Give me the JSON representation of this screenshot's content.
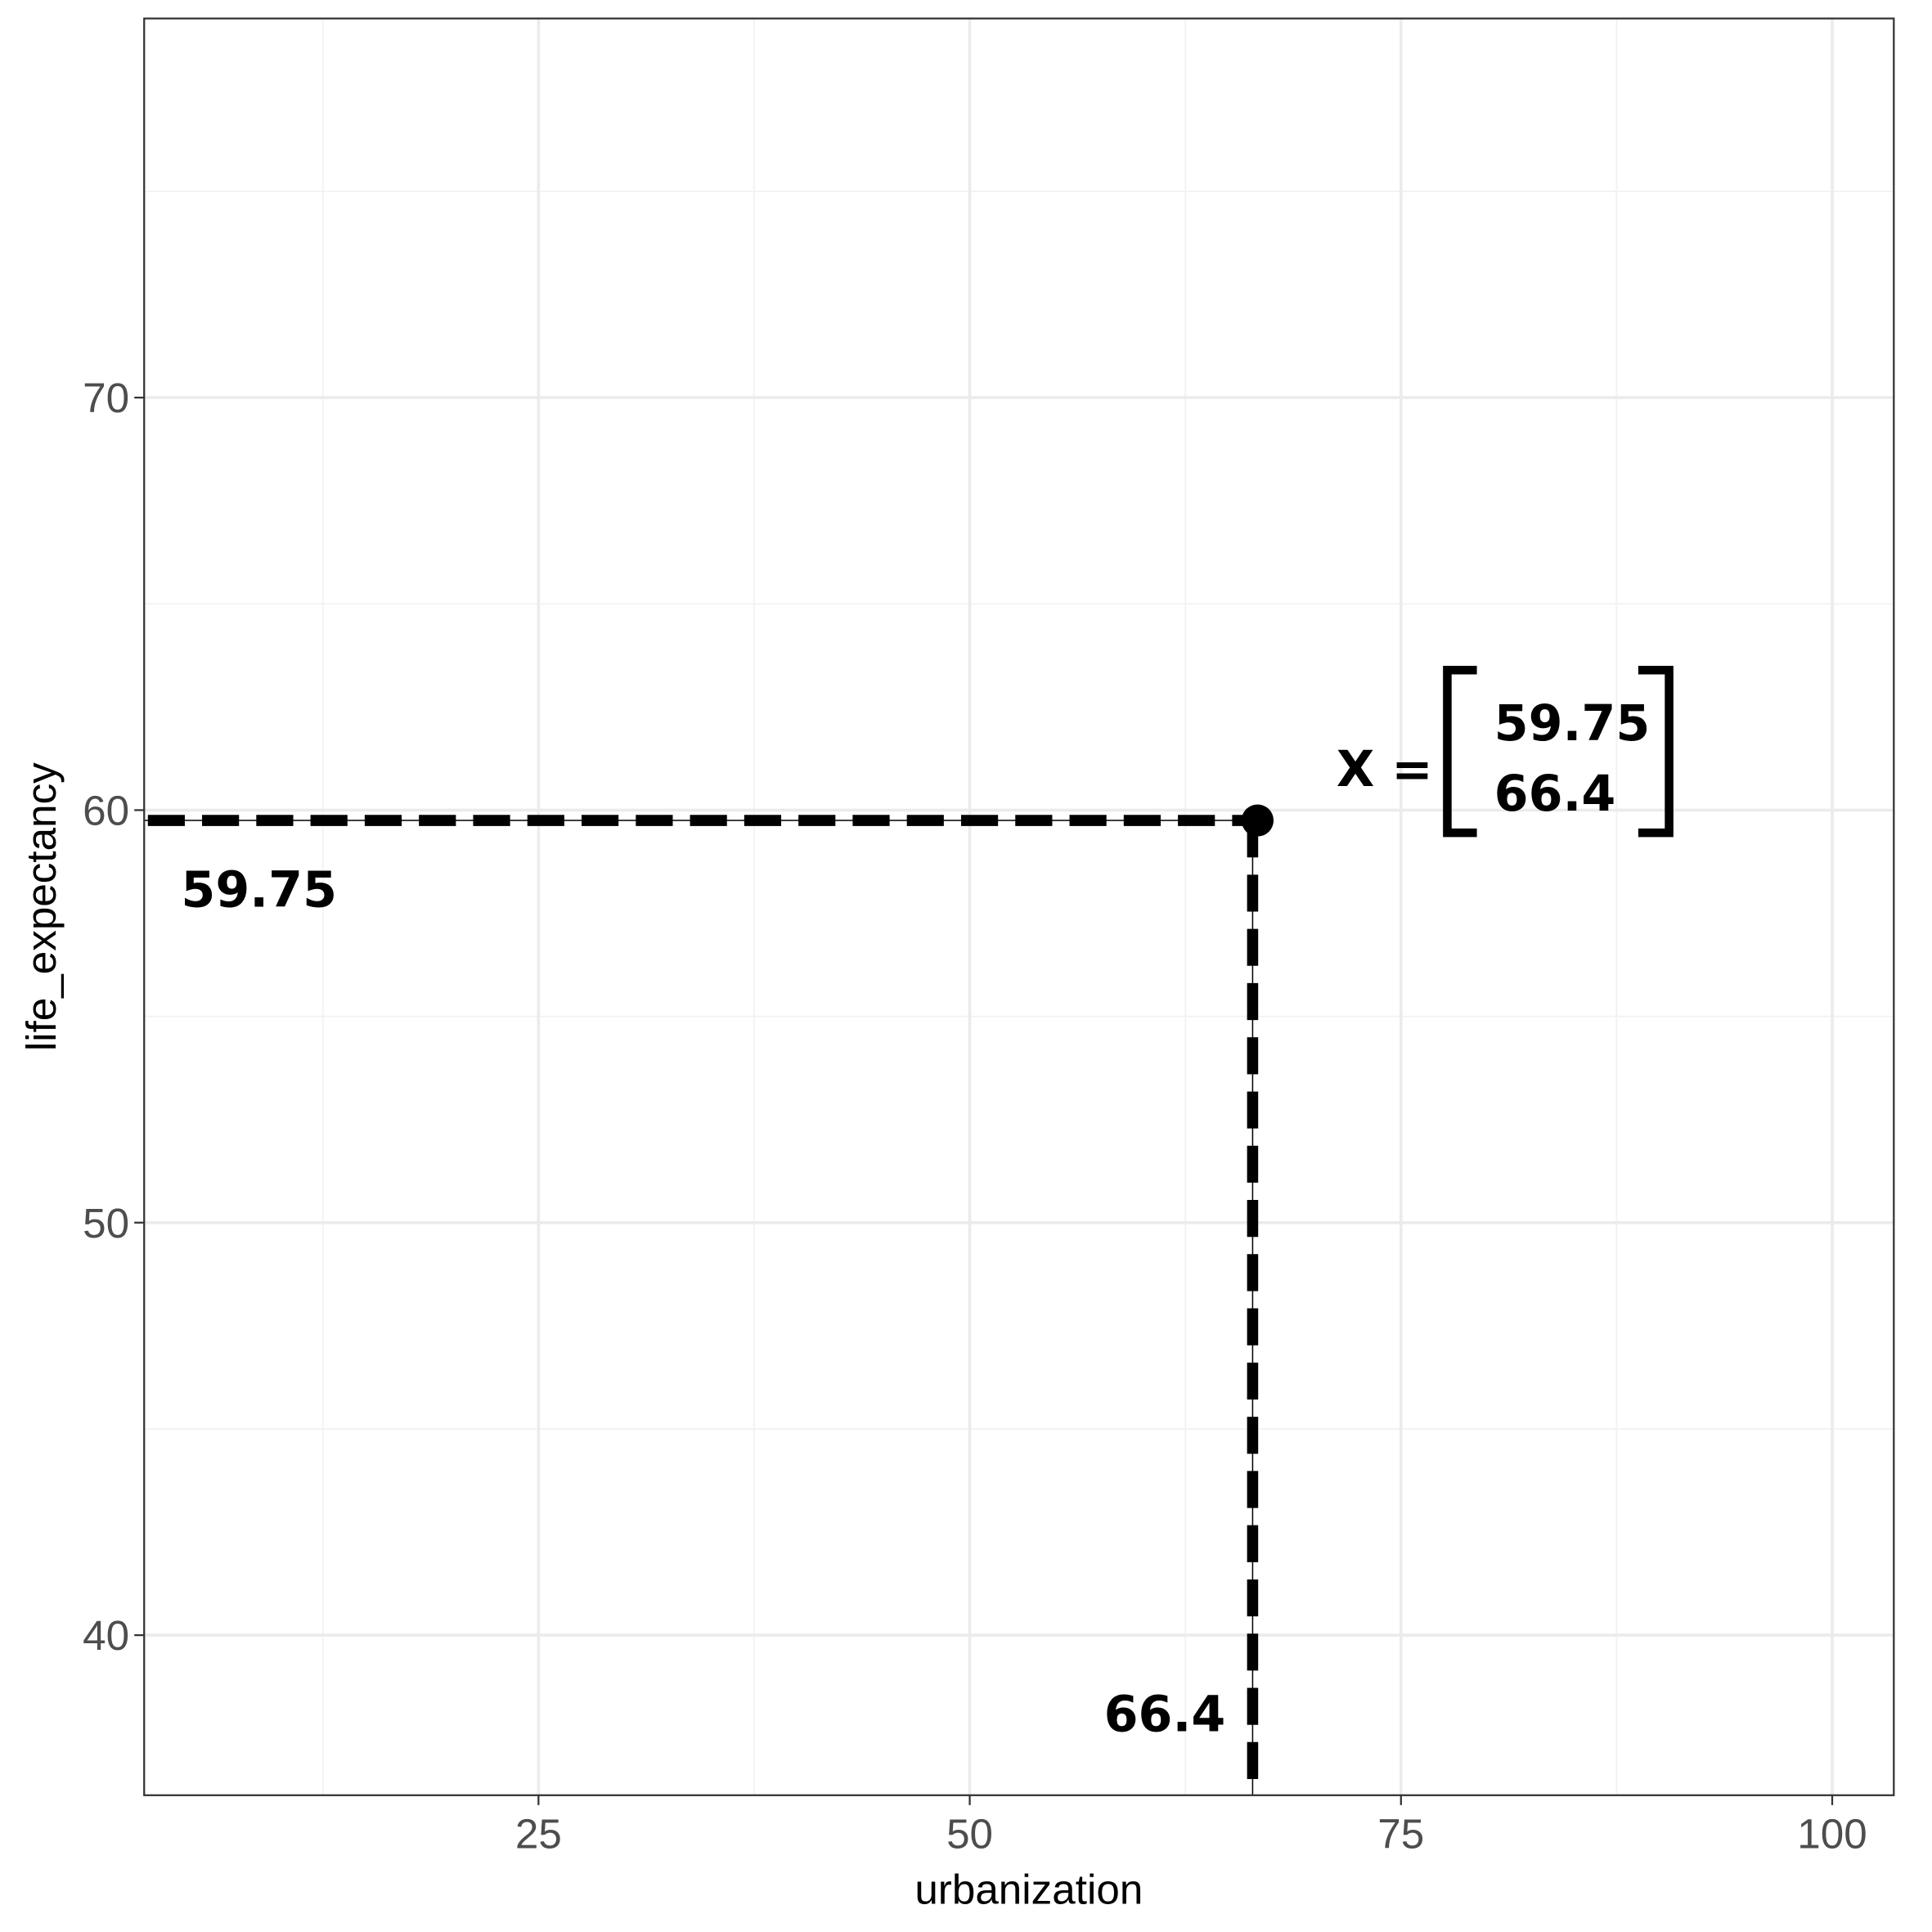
{
  "chart_data": {
    "type": "scatter",
    "x_label": "urbanization",
    "y_label": "life_expectancy",
    "x": [
      66.4
    ],
    "values": [
      59.75
    ],
    "color": "#000000",
    "xlim": [
      2.14,
      103.57
    ],
    "xticks": [
      25,
      50,
      75,
      100
    ],
    "ylim": [
      36.12,
      79.19
    ],
    "yticks": [
      40,
      50,
      60,
      70
    ],
    "grid": true,
    "annotations": {
      "y_value_label": "59.75",
      "x_value_label": "66.4",
      "vector_name": "X =",
      "vector": [
        "59.75",
        "66.4"
      ]
    }
  }
}
